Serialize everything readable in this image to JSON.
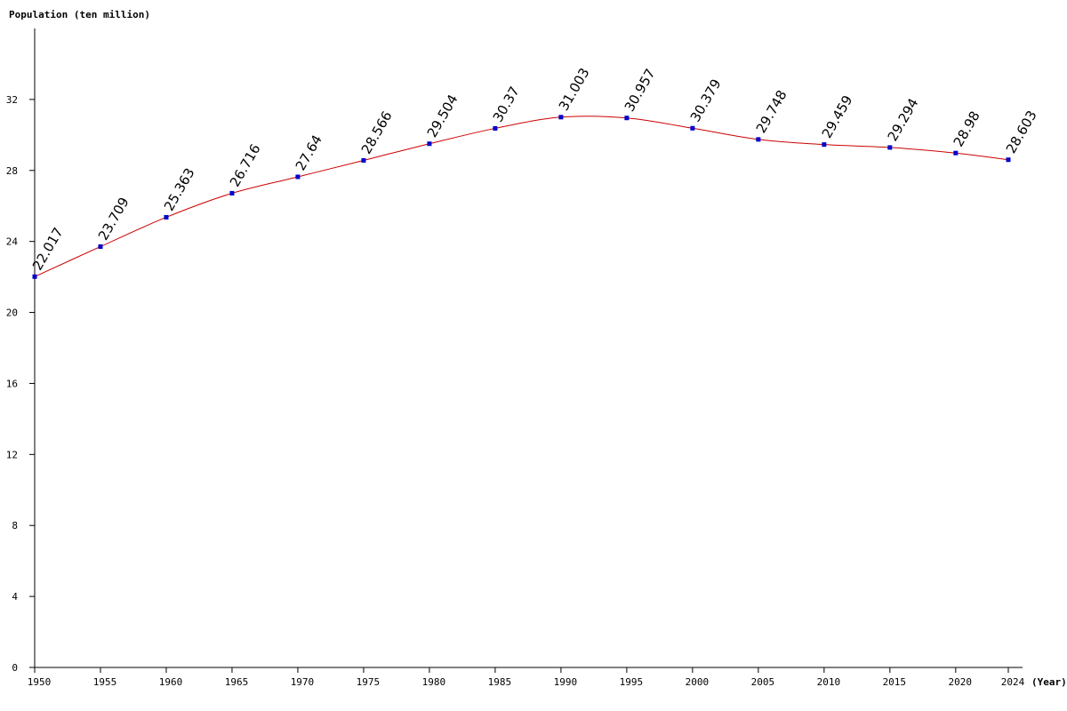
{
  "chart_data": {
    "type": "line",
    "title": "",
    "ylabel": "Population (ten million)",
    "xlabel": "(Year)",
    "x": [
      1950,
      1955,
      1960,
      1965,
      1970,
      1975,
      1980,
      1985,
      1990,
      1995,
      2000,
      2005,
      2010,
      2015,
      2020,
      2024
    ],
    "series": [
      {
        "values": [
          22.017,
          23.709,
          25.363,
          26.716,
          27.64,
          28.566,
          29.504,
          30.37,
          31.003,
          30.957,
          30.379,
          29.748,
          29.459,
          29.294,
          28.98,
          28.603
        ],
        "labels": [
          "22.017",
          "23.709",
          "25.363",
          "26.716",
          "27.64",
          "28.566",
          "29.504",
          "30.37",
          "31.003",
          "30.957",
          "30.379",
          "29.748",
          "29.459",
          "29.294",
          "28.98",
          "28.603"
        ]
      }
    ],
    "xticks": [
      "1950",
      "1955",
      "1960",
      "1965",
      "1970",
      "1975",
      "1980",
      "1985",
      "1990",
      "1995",
      "2000",
      "2005",
      "2010",
      "2015",
      "2020",
      "2024"
    ],
    "yticks": [
      0,
      4,
      8,
      12,
      16,
      20,
      24,
      28,
      32
    ],
    "ytick_labels": [
      "0",
      "4",
      "8",
      "12",
      "16",
      "20",
      "24",
      "28",
      "32"
    ],
    "xlim": [
      1950,
      2024
    ],
    "ylim": [
      0,
      36
    ],
    "grid": false,
    "legend": "none",
    "colors": {
      "line": "#cc0000",
      "points": "#0000cc",
      "axes": "#000000"
    }
  }
}
